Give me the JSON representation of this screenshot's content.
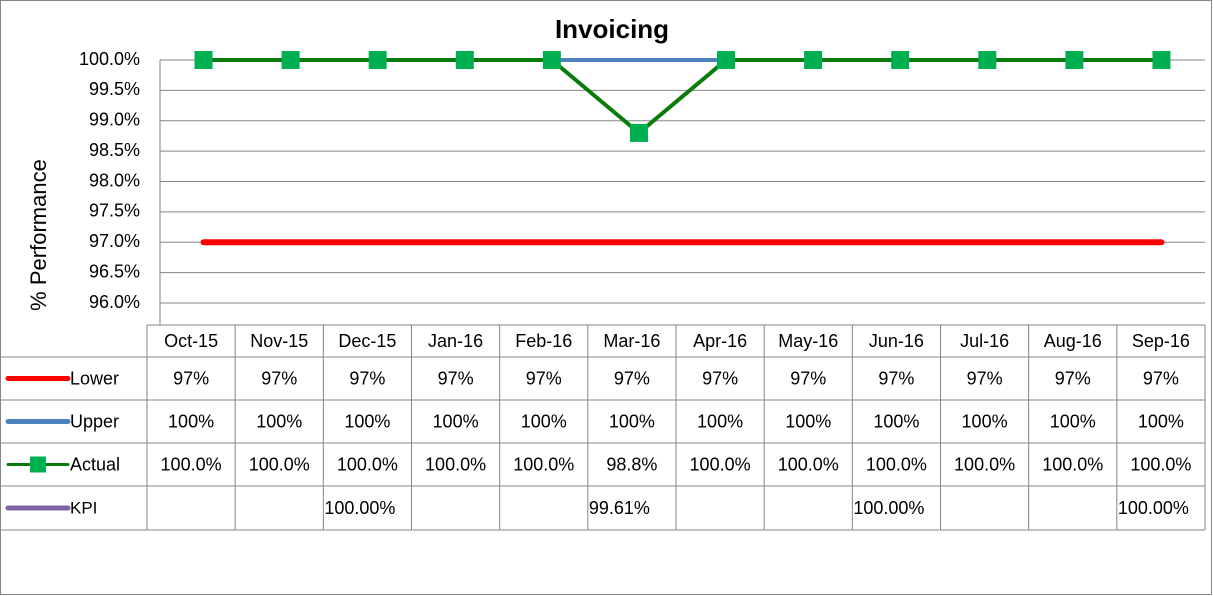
{
  "chart_data": {
    "type": "line",
    "title": "Invoicing",
    "y_label": "% Performance",
    "categories": [
      "Oct-15",
      "Nov-15",
      "Dec-15",
      "Jan-16",
      "Feb-16",
      "Mar-16",
      "Apr-16",
      "May-16",
      "Jun-16",
      "Jul-16",
      "Aug-16",
      "Sep-16"
    ],
    "series": [
      {
        "name": "Lower",
        "color": "#ff0000",
        "values": [
          97,
          97,
          97,
          97,
          97,
          97,
          97,
          97,
          97,
          97,
          97,
          97
        ],
        "value_labels": [
          "97%",
          "97%",
          "97%",
          "97%",
          "97%",
          "97%",
          "97%",
          "97%",
          "97%",
          "97%",
          "97%",
          "97%"
        ]
      },
      {
        "name": "Upper",
        "color": "#4f81bd",
        "values": [
          100,
          100,
          100,
          100,
          100,
          100,
          100,
          100,
          100,
          100,
          100,
          100
        ],
        "value_labels": [
          "100%",
          "100%",
          "100%",
          "100%",
          "100%",
          "100%",
          "100%",
          "100%",
          "100%",
          "100%",
          "100%",
          "100%"
        ]
      },
      {
        "name": "Actual",
        "color": "#0a7a0a",
        "marker_color": "#00b050",
        "values": [
          100,
          100,
          100,
          100,
          100,
          98.8,
          100,
          100,
          100,
          100,
          100,
          100
        ],
        "value_labels": [
          "100.0%",
          "100.0%",
          "100.0%",
          "100.0%",
          "100.0%",
          "98.8%",
          "100.0%",
          "100.0%",
          "100.0%",
          "100.0%",
          "100.0%",
          "100.0%"
        ]
      },
      {
        "name": "KPI",
        "color": "#8064a2",
        "values": [
          null,
          null,
          100,
          null,
          null,
          99.61,
          null,
          null,
          100,
          null,
          null,
          100
        ],
        "value_labels": [
          null,
          null,
          "100.00%",
          null,
          null,
          "99.61%",
          null,
          null,
          "100.00%",
          null,
          null,
          "100.00%"
        ]
      }
    ],
    "ylim": [
      96,
      100
    ],
    "yticks": [
      {
        "value": 96,
        "label": "96.0%"
      },
      {
        "value": 96.5,
        "label": "96.5%"
      },
      {
        "value": 97,
        "label": "97.0%"
      },
      {
        "value": 97.5,
        "label": "97.5%"
      },
      {
        "value": 98,
        "label": "98.0%"
      },
      {
        "value": 98.5,
        "label": "98.5%"
      },
      {
        "value": 99,
        "label": "99.0%"
      },
      {
        "value": 99.5,
        "label": "99.5%"
      },
      {
        "value": 100,
        "label": "100.0%"
      }
    ],
    "grid": true
  }
}
